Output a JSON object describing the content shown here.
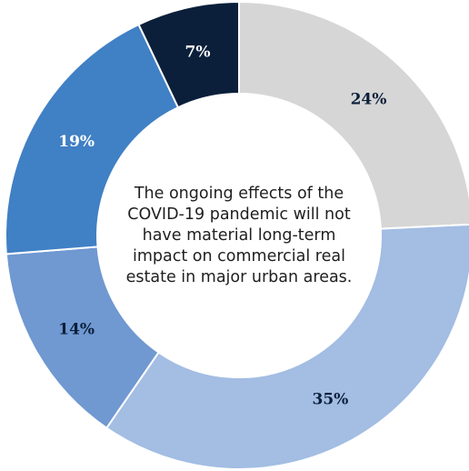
{
  "chart_data": {
    "type": "pie",
    "donut": true,
    "center_text_lines": [
      "The ongoing effects of the",
      "COVID-19 pandemic will not",
      "have material long-term",
      "impact on commercial real",
      "estate in major urban areas."
    ],
    "slices": [
      {
        "label": "24%",
        "value": 24,
        "color": "#d6d6d6",
        "label_color": "#0b1f3a"
      },
      {
        "label": "35%",
        "value": 35,
        "color": "#a3bde3",
        "label_color": "#0b1f3a"
      },
      {
        "label": "14%",
        "value": 14,
        "color": "#7098d1",
        "label_color": "#0b1f3a"
      },
      {
        "label": "19%",
        "value": 19,
        "color": "#4080c4",
        "label_color": "#ffffff"
      },
      {
        "label": "7%",
        "value": 7,
        "color": "#0b1f3a",
        "label_color": "#ffffff"
      }
    ],
    "legend": "none"
  }
}
